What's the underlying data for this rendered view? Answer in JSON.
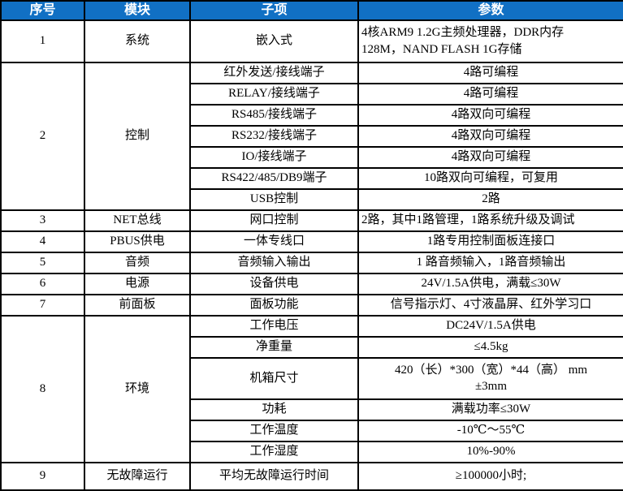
{
  "colors": {
    "header_bg": "#1170c4",
    "header_text": "#ffffff",
    "border": "#000000"
  },
  "header": {
    "columns": [
      "序号",
      "模块",
      "子项",
      "参数"
    ]
  },
  "groups": [
    {
      "no": "1",
      "module": "系统",
      "rows": [
        {
          "sub": "嵌入式",
          "param": "4核ARM9 1.2G主频处理器，DDR内存\n128M，NAND FLASH 1G存储",
          "align": "left",
          "h": 52
        }
      ]
    },
    {
      "no": "2",
      "module": "控制",
      "rows": [
        {
          "sub": "红外发送/接线端子",
          "param": "4路可编程"
        },
        {
          "sub": "RELAY/接线端子",
          "param": "4路可编程"
        },
        {
          "sub": "RS485/接线端子",
          "param": "4路双向可编程"
        },
        {
          "sub": "RS232/接线端子",
          "param": "4路双向可编程"
        },
        {
          "sub": "IO/接线端子",
          "param": "4路双向可编程"
        },
        {
          "sub": "RS422/485/DB9端子",
          "param": "10路双向可编程，可复用"
        },
        {
          "sub": "USB控制",
          "param": "2路"
        }
      ]
    },
    {
      "no": "3",
      "module": "NET总线",
      "rows": [
        {
          "sub": "网口控制",
          "param": "2路，其中1路管理，1路系统升级及调试",
          "align": "left"
        }
      ]
    },
    {
      "no": "4",
      "module": "PBUS供电",
      "rows": [
        {
          "sub": "一体专线口",
          "param": "1路专用控制面板连接口"
        }
      ]
    },
    {
      "no": "5",
      "module": "音频",
      "rows": [
        {
          "sub": "音频输入输出",
          "param": "1 路音频输入，1路音频输出"
        }
      ]
    },
    {
      "no": "6",
      "module": "电源",
      "rows": [
        {
          "sub": "设备供电",
          "param": "24V/1.5A供电，满载≤30W"
        }
      ]
    },
    {
      "no": "7",
      "module": "前面板",
      "rows": [
        {
          "sub": "面板功能",
          "param": "信号指示灯、4寸液晶屏、红外学习口"
        }
      ]
    },
    {
      "no": "8",
      "module": "环境",
      "rows": [
        {
          "sub": "工作电压",
          "param": "DC24V/1.5A供电"
        },
        {
          "sub": "净重量",
          "param": "≤4.5kg"
        },
        {
          "sub": "机箱尺寸",
          "param": "420（长）*300（宽）*44（高） mm\n±3mm",
          "h": 51
        },
        {
          "sub": "功耗",
          "param": "满载功率≤30W"
        },
        {
          "sub": "工作温度",
          "param": "-10℃～55℃"
        },
        {
          "sub": "工作湿度",
          "param": "10%-90%"
        }
      ]
    },
    {
      "no": "9",
      "module": "无故障运行",
      "rows": [
        {
          "sub": "平均无故障运行时间",
          "param": "≥100000小时;",
          "h": 34
        }
      ]
    }
  ]
}
